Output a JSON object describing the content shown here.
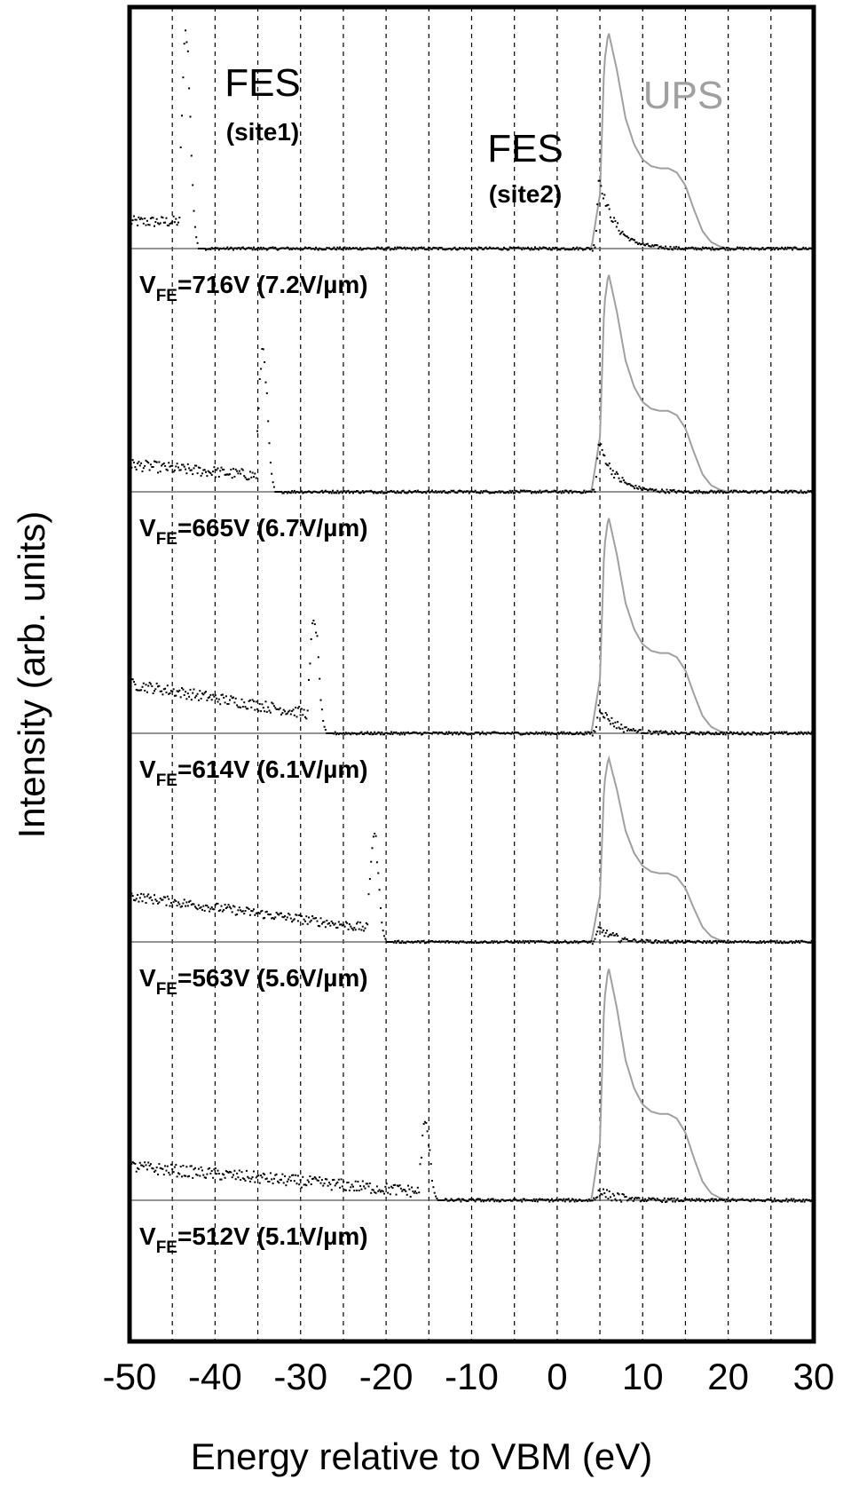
{
  "chart_data": {
    "type": "line",
    "xlabel": "Energy relative to VBM (eV)",
    "ylabel": "Intensity (arb. units)",
    "xlim": [
      -50,
      30
    ],
    "xticks": [
      -50,
      -40,
      -30,
      -20,
      -10,
      0,
      10,
      20,
      30
    ],
    "xtick_labels": [
      "-50",
      "-40",
      "-30",
      "-20",
      "-10",
      "0",
      "10",
      "20",
      "30"
    ],
    "gridlines_x": [
      -45,
      -40,
      -35,
      -30,
      -25,
      -20,
      -15,
      -10,
      -5,
      0,
      5,
      10,
      15,
      20,
      25
    ],
    "grid": "vertical dashed",
    "legend": "none",
    "colors": {
      "fes": "#000000",
      "ups": "#a0a0a0",
      "grid": "#000000"
    },
    "annotations": [
      {
        "id": "fes-site1",
        "text": "FES",
        "subtext": "(site1)"
      },
      {
        "id": "fes-site2",
        "text": "FES",
        "subtext": "(site2)"
      },
      {
        "id": "ups",
        "text": "UPS"
      }
    ],
    "panels": [
      {
        "vfe_prefix": "V",
        "vfe_sub": "FE",
        "vfe_rest": "=716V (7.2V/µm)",
        "fes_site1_peak_eV": -43.5,
        "fes_site1_height": 0.95,
        "fes_site2_height": 0.32,
        "background_start": 0.12,
        "background_decay": 0.0
      },
      {
        "vfe_prefix": "V",
        "vfe_sub": "FE",
        "vfe_rest": "=665V (6.7V/µm)",
        "fes_site1_peak_eV": -34.5,
        "fes_site1_height": 0.62,
        "fes_site2_height": 0.22,
        "background_start": 0.12,
        "background_decay": 0.4
      },
      {
        "vfe_prefix": "V",
        "vfe_sub": "FE",
        "vfe_rest": "=614V (6.1V/µm)",
        "fes_site1_peak_eV": -28.5,
        "fes_site1_height": 0.5,
        "fes_site2_height": 0.12,
        "background_start": 0.22,
        "background_decay": 0.6
      },
      {
        "vfe_prefix": "V",
        "vfe_sub": "FE",
        "vfe_rest": "=563V (5.6V/µm)",
        "fes_site1_peak_eV": -21.5,
        "fes_site1_height": 0.55,
        "fes_site2_height": 0.07,
        "background_start": 0.24,
        "background_decay": 0.7
      },
      {
        "vfe_prefix": "V",
        "vfe_sub": "FE",
        "vfe_rest": "=512V (5.1V/µm)",
        "fes_site1_peak_eV": -15.5,
        "fes_site1_height": 0.3,
        "fes_site2_height": 0.04,
        "background_start": 0.14,
        "background_decay": 0.75
      }
    ],
    "ups_series": {
      "x": [
        4.0,
        5.0,
        5.5,
        6.0,
        7.0,
        8.0,
        9.0,
        10.0,
        11.0,
        12.0,
        13.0,
        14.0,
        15.0,
        16.0,
        17.0,
        18.0,
        19.0,
        20.0
      ],
      "y": [
        0.0,
        0.25,
        0.85,
        1.0,
        0.82,
        0.6,
        0.48,
        0.41,
        0.38,
        0.37,
        0.37,
        0.35,
        0.29,
        0.18,
        0.08,
        0.03,
        0.01,
        0.0
      ]
    }
  }
}
